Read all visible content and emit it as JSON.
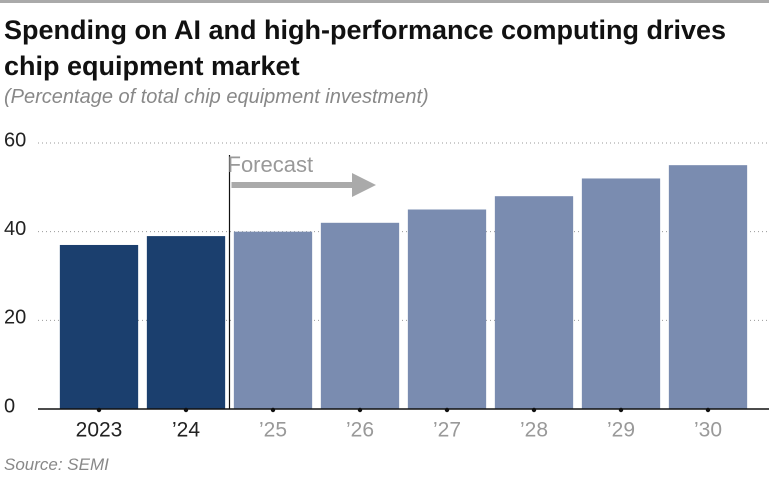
{
  "chart_data": {
    "type": "bar",
    "title": "Spending on AI and high-performance computing drives chip equipment market",
    "subtitle": "(Percentage of total chip equipment investment)",
    "source": "Source: SEMI",
    "annotation": "Forecast",
    "categories": [
      "2023",
      "’24",
      "’25",
      "’26",
      "’27",
      "’28",
      "’29",
      "’30"
    ],
    "values": [
      37,
      39,
      40,
      42,
      45,
      48,
      52,
      55
    ],
    "colors": [
      "#1b3f6e",
      "#1b3f6e",
      "#7a8cb0",
      "#7a8cb0",
      "#7a8cb0",
      "#7a8cb0",
      "#7a8cb0",
      "#7a8cb0"
    ],
    "ylim": [
      0,
      60
    ],
    "yticks": [
      0,
      20,
      40,
      60
    ],
    "grid": true
  }
}
